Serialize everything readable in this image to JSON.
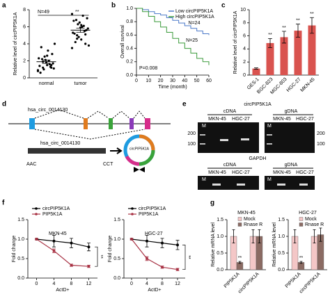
{
  "panels": [
    "a",
    "b",
    "c",
    "d",
    "e",
    "f",
    "g"
  ],
  "chart_data": [
    {
      "type": "strip",
      "ylabel": "Relative level of circPIP5K1A",
      "categories": [
        "normal",
        "tumor"
      ],
      "ylim": [
        0,
        8
      ],
      "yticks": [
        0,
        2,
        4,
        6,
        8
      ],
      "values": [
        [
          0.8,
          1.2,
          1.5,
          1.9,
          2.3,
          2.8,
          3.2,
          1.0,
          1.4,
          1.7,
          2.0,
          2.5,
          0.6,
          1.1,
          1.6,
          2.1,
          3.6,
          4.0,
          1.3,
          1.8,
          2.2,
          0.9,
          1.5,
          2.6,
          1.2
        ],
        [
          3.5,
          4.0,
          4.5,
          5.0,
          5.3,
          5.6,
          6.0,
          6.3,
          6.7,
          7.0,
          7.3,
          4.8,
          5.2,
          5.8,
          6.1,
          6.5,
          4.2,
          3.8,
          5.5,
          5.9,
          6.8,
          7.5,
          5.1,
          6.2,
          4.6
        ]
      ],
      "means": [
        1.9,
        5.6
      ],
      "errors": [
        0.2,
        0.25
      ],
      "color": "#000000",
      "annotations": [
        "N=49",
        "**"
      ]
    },
    {
      "type": "survival",
      "ylabel": "Overall survival",
      "xlabel": "Time (month)",
      "xlim": [
        0,
        60
      ],
      "xticks": [
        0,
        10,
        20,
        30,
        40,
        50,
        60
      ],
      "ylim": [
        0,
        1
      ],
      "yticks": [
        {
          "value": 0,
          "label": "0.0"
        },
        0.2,
        0.4,
        0.6,
        0.8,
        {
          "value": 1,
          "label": "1.0"
        }
      ],
      "x": [
        0,
        5,
        10,
        15,
        20,
        25,
        30,
        35,
        40,
        45,
        50,
        55,
        60
      ],
      "series": [
        {
          "name": "Low circPIP5K1A",
          "color": "#4a78c8",
          "values": [
            1,
            0.98,
            0.95,
            0.92,
            0.9,
            0.86,
            0.82,
            0.78,
            0.74,
            0.7,
            0.66,
            0.62,
            0.6
          ]
        },
        {
          "name": "High circPIP5K1A",
          "color": "#3a9a3a",
          "values": [
            1,
            0.95,
            0.88,
            0.8,
            0.72,
            0.64,
            0.55,
            0.48,
            0.4,
            0.33,
            0.25,
            0.2,
            0.15
          ]
        }
      ],
      "legend": "top-right",
      "annotations": [
        "N=24",
        "N=25",
        "P=0.008"
      ]
    },
    {
      "type": "bar",
      "ylabel": "Relative level of circPIP5K1A",
      "categories": [
        "GES-1",
        "BGC-823",
        "MGC-803",
        "HGC-27",
        "MKN-45"
      ],
      "values": [
        1,
        4.9,
        5.8,
        6.8,
        7.6
      ],
      "errors": [
        0.1,
        0.7,
        0.9,
        1.0,
        1.2
      ],
      "color": "#d9534f",
      "ylim": [
        0,
        10
      ],
      "yticks": [
        0,
        2,
        4,
        6,
        8,
        10
      ],
      "annotations": [
        "**",
        "**",
        "**",
        "**"
      ]
    },
    {
      "type": "line",
      "title": "MKN-45",
      "ylabel": "Fold change",
      "xlabel": "ActD+",
      "xlim": [
        -2,
        14
      ],
      "xticks": [
        0,
        4,
        8,
        12
      ],
      "ylim": [
        0,
        1.5
      ],
      "yticks": [
        {
          "value": 0,
          "label": "0.0"
        },
        0.5,
        {
          "value": 1,
          "label": "1.0"
        },
        1.5
      ],
      "x": [
        0,
        4,
        8,
        12
      ],
      "series": [
        {
          "name": "circPIP5K1A",
          "color": "#000000",
          "values": [
            1,
            0.95,
            0.9,
            0.8
          ],
          "errors": [
            0.02,
            0.15,
            0.12,
            0.1
          ]
        },
        {
          "name": "PIP5K1A",
          "color": "#a83244",
          "values": [
            1,
            0.7,
            0.33,
            0.3
          ],
          "errors": [
            0.02,
            0.05,
            0.03,
            0.03
          ]
        }
      ],
      "annotations": [
        "**"
      ]
    },
    {
      "type": "line",
      "title": "HGC-27",
      "ylabel": "Fold change",
      "xlabel": "ActD+",
      "xlim": [
        -2,
        14
      ],
      "xticks": [
        0,
        4,
        8,
        12
      ],
      "ylim": [
        0,
        1.5
      ],
      "yticks": [
        {
          "value": 0,
          "label": "0.0"
        },
        0.5,
        {
          "value": 1,
          "label": "1.0"
        },
        1.5
      ],
      "x": [
        0,
        4,
        8,
        12
      ],
      "series": [
        {
          "name": "circPIP5K1A",
          "color": "#000000",
          "values": [
            1,
            0.95,
            0.9,
            0.85
          ],
          "errors": [
            0.02,
            0.15,
            0.12,
            0.12
          ]
        },
        {
          "name": "PIP5K1A",
          "color": "#a83244",
          "values": [
            1,
            0.5,
            0.28,
            0.22
          ],
          "errors": [
            0.02,
            0.05,
            0.03,
            0.03
          ]
        }
      ],
      "annotations": [
        "**"
      ]
    },
    {
      "type": "groupbar",
      "title": "MKN-45",
      "ylabel": "Relative mRNA level",
      "categories": [
        "PIP5K1A",
        "circPIP5K1A"
      ],
      "ylim": [
        0,
        1.5
      ],
      "yticks": [
        {
          "value": 0,
          "label": "0.0"
        },
        0.5,
        {
          "value": 1,
          "label": "1.0"
        },
        1.5
      ],
      "series": [
        {
          "name": "Mock",
          "color": "#f4c7c7",
          "values": [
            1.0,
            1.0
          ],
          "errors": [
            0.2,
            0.2
          ]
        },
        {
          "name": "Rnase R",
          "color": "#8b6b63",
          "values": [
            0.22,
            1.0
          ],
          "errors": [
            0.03,
            0.2
          ]
        }
      ],
      "annotations": [
        "**"
      ]
    },
    {
      "type": "groupbar",
      "title": "HGC-27",
      "ylabel": "Relative mRNA level",
      "categories": [
        "PIP5K1A",
        "circPIP5K1A"
      ],
      "ylim": [
        0,
        1.5
      ],
      "yticks": [
        {
          "value": 0,
          "label": "0.0"
        },
        0.5,
        {
          "value": 1,
          "label": "1.0"
        },
        1.5
      ],
      "series": [
        {
          "name": "Mock",
          "color": "#f4c7c7",
          "values": [
            1.0,
            1.0
          ],
          "errors": [
            0.2,
            0.2
          ]
        },
        {
          "name": "Rnase R",
          "color": "#8b6b63",
          "values": [
            0.22,
            1.05
          ],
          "errors": [
            0.03,
            0.2
          ]
        }
      ],
      "annotations": [
        "**"
      ]
    }
  ],
  "diagram": {
    "labels": [
      "hsa_circ_0014130",
      "hsa_circ_0014130",
      "AAC",
      "CCT",
      "circPIP5K1A"
    ]
  },
  "gel": {
    "title": "circPIP5K1A",
    "groups": [
      "cDNA",
      "gDNA"
    ],
    "lanes": [
      "MKN-45",
      "HGC-27",
      "MKN-45",
      "HGC-27"
    ],
    "markers": [
      "M",
      "M"
    ],
    "sizes": [
      "200",
      "100",
      "200",
      "100"
    ],
    "control": "GAPDH",
    "control_groups": [
      "cDNA",
      "gDNA"
    ],
    "control_lanes": [
      "MKN-45",
      "HGC-27",
      "MKN-45",
      "HGC-27"
    ],
    "control_markers": [
      "M",
      "M"
    ]
  }
}
